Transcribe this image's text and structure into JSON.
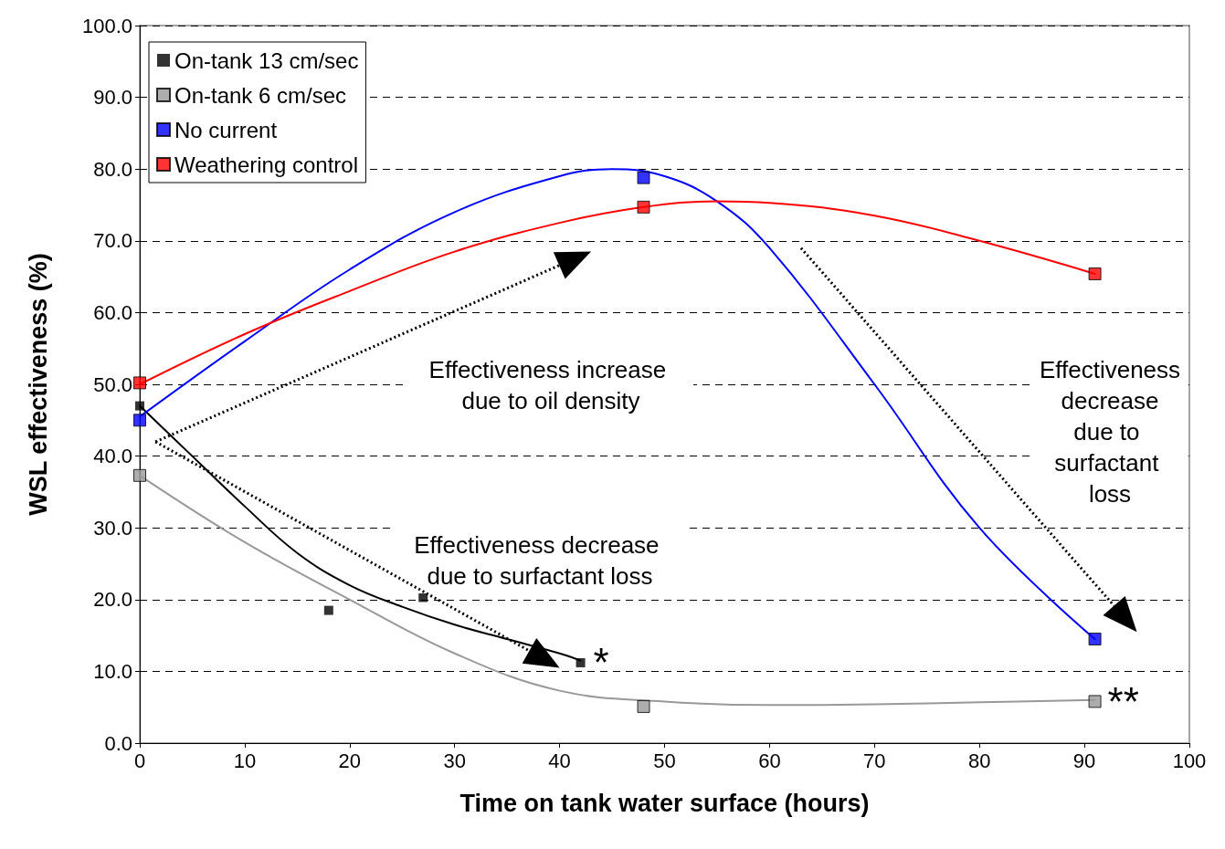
{
  "chart_data": {
    "type": "scatter",
    "xlabel": "Time on tank water surface (hours)",
    "ylabel": "WSL effectiveness (%)",
    "xlim": [
      0,
      100
    ],
    "xticks": [
      0,
      10,
      20,
      30,
      40,
      50,
      60,
      70,
      80,
      90,
      100
    ],
    "ylim": [
      0,
      100
    ],
    "yticks": [
      {
        "value": 0,
        "label": "0.0"
      },
      {
        "value": 10,
        "label": "10.0"
      },
      {
        "value": 20,
        "label": "20.0"
      },
      {
        "value": 30,
        "label": "30.0"
      },
      {
        "value": 40,
        "label": "40.0"
      },
      {
        "value": 50,
        "label": "50.0"
      },
      {
        "value": 60,
        "label": "60.0"
      },
      {
        "value": 70,
        "label": "70.0"
      },
      {
        "value": 80,
        "label": "80.0"
      },
      {
        "value": 90,
        "label": "90.0"
      },
      {
        "value": 100,
        "label": "100.0"
      }
    ],
    "grid": "y",
    "legend": "top left",
    "marker": "square",
    "series": [
      {
        "name": "On-tank 13 cm/sec",
        "color": "#000000",
        "x": [
          0,
          18,
          27,
          42
        ],
        "values": [
          47,
          18.5,
          20.3,
          11.2
        ]
      },
      {
        "name": "On-tank 6 cm/sec",
        "color": "#999999",
        "x": [
          0,
          48,
          91
        ],
        "values": [
          37.3,
          5.1,
          5.8
        ]
      },
      {
        "name": "No current",
        "color": "#0000ff",
        "x": [
          0,
          48,
          91
        ],
        "values": [
          45,
          78.8,
          14.5
        ]
      },
      {
        "name": "Weathering control",
        "color": "#ff0000",
        "x": [
          0,
          48,
          91
        ],
        "values": [
          50.2,
          74.7,
          65.4
        ]
      },
      {
        "type": "line",
        "marker": "none",
        "color": "#000000",
        "x": [
          0,
          5,
          10,
          15,
          20,
          25,
          30,
          35,
          40,
          42
        ],
        "values": [
          47,
          40,
          33,
          26.5,
          22,
          19,
          16.5,
          14.5,
          12.5,
          11.5
        ]
      },
      {
        "type": "line",
        "marker": "none",
        "color": "#999999",
        "x": [
          0,
          10,
          20,
          30,
          40,
          50,
          60,
          70,
          80,
          91
        ],
        "values": [
          37.3,
          28,
          20,
          12.5,
          7.3,
          5.8,
          5.3,
          5.4,
          5.7,
          6
        ]
      },
      {
        "type": "line",
        "marker": "none",
        "color": "#0000ff",
        "x": [
          0,
          10,
          20,
          30,
          40,
          45,
          50,
          55,
          60,
          70,
          80,
          91
        ],
        "values": [
          45.5,
          56,
          66,
          74,
          79,
          80,
          79,
          75.5,
          69,
          50,
          30,
          14.5
        ]
      },
      {
        "type": "line",
        "marker": "none",
        "color": "#ff0000",
        "x": [
          0,
          10,
          20,
          30,
          40,
          48,
          55,
          60,
          70,
          80,
          91
        ],
        "values": [
          50,
          57,
          63,
          68.5,
          72.5,
          74.7,
          75.5,
          75.3,
          73.5,
          70,
          65.4
        ]
      }
    ],
    "annotations": [
      "Effectiveness increase due to oil density",
      "Effectiveness decrease due to surfactant loss",
      "Effectiveness decrease due to surfactant loss",
      {
        "text": "*",
        "x": 42,
        "y": 11.2
      },
      {
        "text": "**",
        "x": 91,
        "y": 5.8
      }
    ]
  }
}
